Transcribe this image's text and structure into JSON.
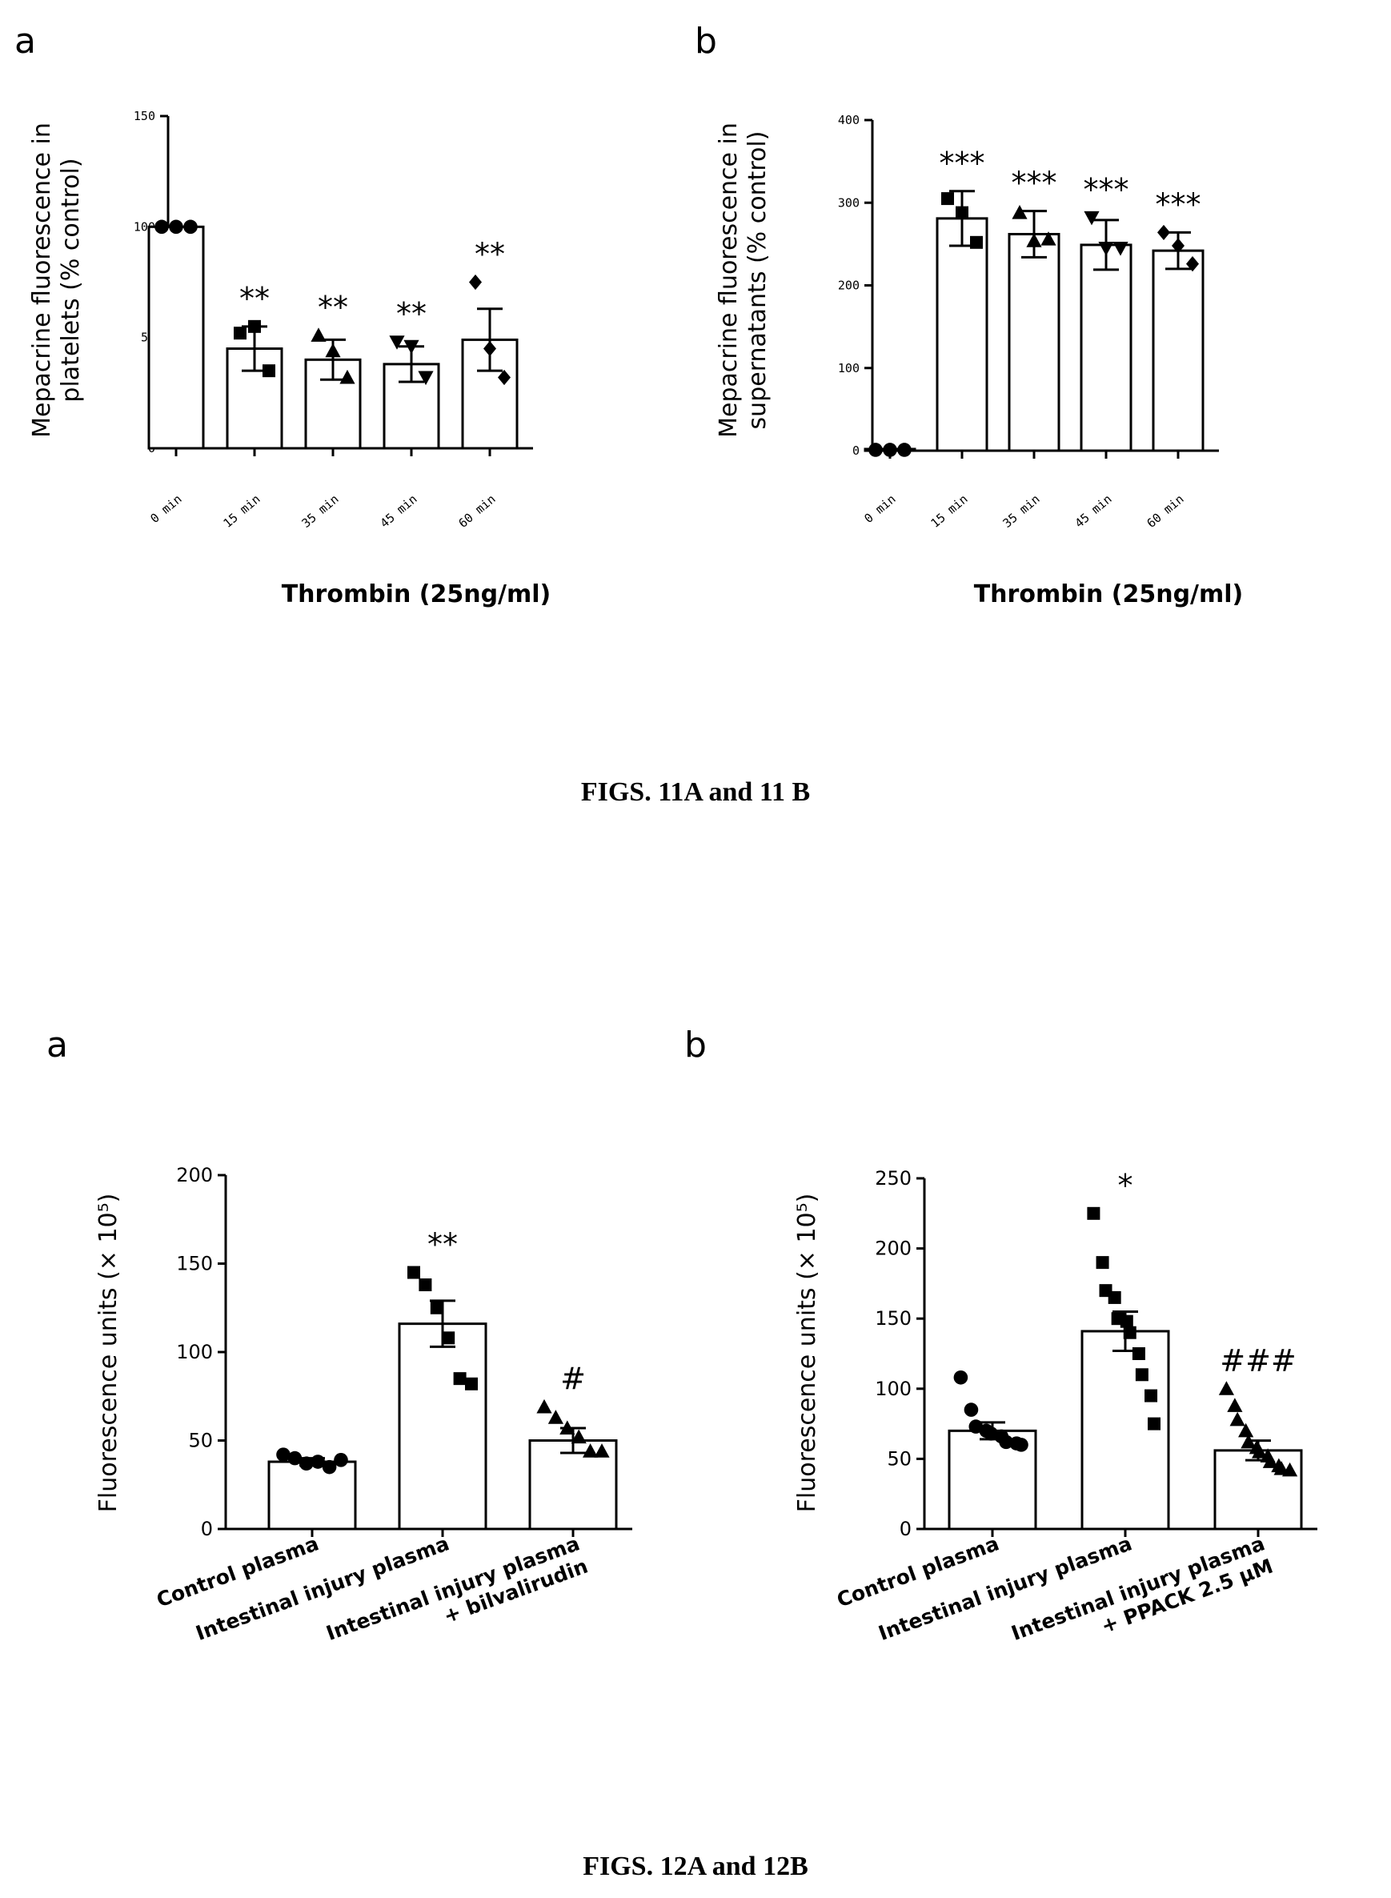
{
  "figure_captions": [
    "FIGS. 11A and 11 B",
    "FIGS. 12A and 12B"
  ],
  "chart_data": [
    {
      "type": "bar",
      "panel": "a",
      "ylabel_lines": [
        "Mepacrine fluorescence in",
        "platelets (% control)"
      ],
      "xlabel": "Thrombin (25ng/ml)",
      "categories": [
        "0 min",
        "15 min",
        "35 min",
        "45 min",
        "60 min"
      ],
      "values": [
        100,
        45,
        40,
        38,
        49
      ],
      "errors": [
        0,
        10,
        9,
        8,
        14
      ],
      "points": [
        [
          100,
          100,
          100
        ],
        [
          52,
          55,
          35
        ],
        [
          51,
          44,
          32
        ],
        [
          48,
          46,
          32
        ],
        [
          75,
          45,
          32
        ]
      ],
      "markers": [
        "circle",
        "square",
        "triangle",
        "triangle-down",
        "diamond"
      ],
      "significance": [
        "",
        "**",
        "**",
        "**",
        "**"
      ],
      "ylim": [
        0,
        150
      ],
      "yticks": [
        0,
        50,
        100,
        150
      ],
      "tick_style": "small"
    },
    {
      "type": "bar",
      "panel": "b",
      "ylabel_lines": [
        "Mepacrine fluorescence in",
        "supernatants (% control)"
      ],
      "xlabel": "Thrombin (25ng/ml)",
      "categories": [
        "0 min",
        "15 min",
        "35 min",
        "45 min",
        "60 min"
      ],
      "values": [
        2,
        281,
        262,
        249,
        242
      ],
      "errors": [
        0,
        33,
        28,
        30,
        22
      ],
      "points": [
        [
          1,
          1,
          1
        ],
        [
          305,
          288,
          252
        ],
        [
          288,
          254,
          256
        ],
        [
          282,
          245,
          245
        ],
        [
          264,
          248,
          226
        ]
      ],
      "markers": [
        "circle",
        "square",
        "triangle",
        "triangle-down",
        "diamond"
      ],
      "significance": [
        "",
        "***",
        "***",
        "***",
        "***"
      ],
      "ylim": [
        0,
        400
      ],
      "yticks": [
        0,
        100,
        200,
        300,
        400
      ],
      "tick_style": "small"
    },
    {
      "type": "bar",
      "panel": "a",
      "ylabel_lines": [
        "Fluorescence units (× 10⁵)"
      ],
      "xlabel": "",
      "categories": [
        "Control plasma",
        "Intestinal injury plasma",
        "Intestinal injury plasma|+ bilvalirudin"
      ],
      "values": [
        38,
        116,
        50
      ],
      "errors": [
        2,
        13,
        7
      ],
      "points": [
        [
          42,
          40,
          37,
          38,
          35,
          39
        ],
        [
          145,
          138,
          125,
          108,
          85,
          82
        ],
        [
          69,
          63,
          57,
          52,
          44,
          44
        ]
      ],
      "markers": [
        "circle",
        "square",
        "triangle"
      ],
      "significance": [
        "",
        "**",
        "#"
      ],
      "ylim": [
        0,
        200
      ],
      "yticks": [
        0,
        50,
        100,
        150,
        200
      ],
      "tick_style": "large"
    },
    {
      "type": "bar",
      "panel": "b",
      "ylabel_lines": [
        "Fluorescence units (× 10⁵)"
      ],
      "xlabel": "",
      "categories": [
        "Control plasma",
        "Intestinal injury plasma",
        "Intestinal injury plasma|+ PPACK 2.5 μM"
      ],
      "values": [
        70,
        141,
        56
      ],
      "errors": [
        6,
        14,
        7
      ],
      "points": [
        [
          108,
          85,
          73,
          70,
          68,
          66,
          62,
          61,
          60
        ],
        [
          225,
          190,
          170,
          165,
          150,
          148,
          140,
          125,
          110,
          95,
          75
        ],
        [
          100,
          88,
          78,
          70,
          62,
          58,
          55,
          52,
          48,
          45,
          43,
          42
        ]
      ],
      "markers": [
        "circle",
        "square",
        "triangle"
      ],
      "significance": [
        "",
        "*",
        "###"
      ],
      "ylim": [
        0,
        250
      ],
      "yticks": [
        0,
        50,
        100,
        150,
        200,
        250
      ],
      "tick_style": "large"
    }
  ]
}
